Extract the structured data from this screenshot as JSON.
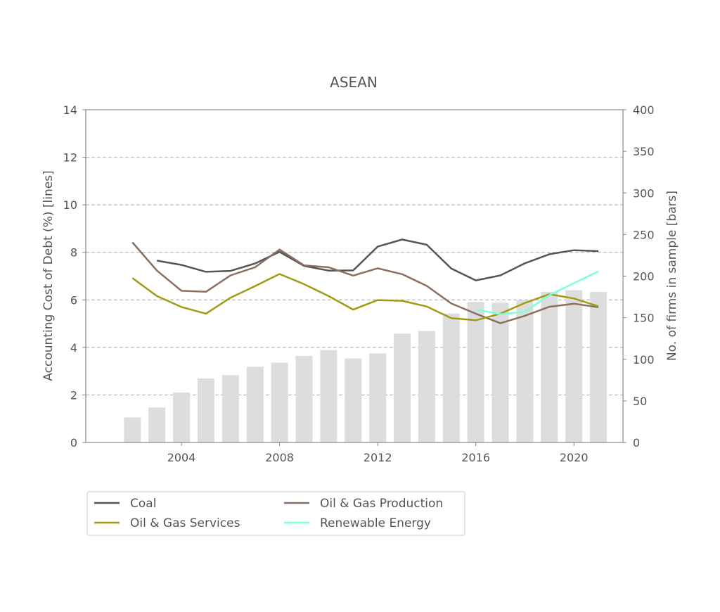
{
  "chart_data": {
    "type": "bar+line",
    "title": "ASEAN",
    "ylabel_left": "Accounting Cost of Debt (%)  [lines]",
    "ylabel_right": "No. of firms in sample [bars]",
    "xlim": [
      2000.1,
      2022.0
    ],
    "ylim_left": [
      0,
      14
    ],
    "ylim_right": [
      0,
      400
    ],
    "x_ticks": [
      2004,
      2008,
      2012,
      2016,
      2020
    ],
    "y_left_ticks": [
      0,
      2,
      4,
      6,
      8,
      10,
      12,
      14
    ],
    "y_right_ticks": [
      0,
      50,
      100,
      150,
      200,
      250,
      300,
      350,
      400
    ],
    "grid": "horizontal dashed",
    "legend_position": "bottom",
    "bar_color": "#dddddd",
    "bars": {
      "x": [
        2002,
        2003,
        2004,
        2005,
        2006,
        2007,
        2008,
        2009,
        2010,
        2011,
        2012,
        2013,
        2014,
        2015,
        2016,
        2017,
        2018,
        2019,
        2020,
        2021
      ],
      "values": [
        30,
        42,
        60,
        77,
        81,
        91,
        96,
        104,
        111,
        101,
        107,
        131,
        134,
        155,
        169,
        168,
        171,
        181,
        183,
        181
      ]
    },
    "series": [
      {
        "name": "Coal",
        "color": "#555555",
        "x": [
          2003,
          2004,
          2005,
          2006,
          2007,
          2008,
          2009,
          2010,
          2011,
          2012,
          2013,
          2014,
          2015,
          2016,
          2017,
          2018,
          2019,
          2020,
          2021
        ],
        "values": [
          7.65,
          7.47,
          7.18,
          7.22,
          7.53,
          8.02,
          7.43,
          7.23,
          7.24,
          8.24,
          8.54,
          8.32,
          7.32,
          6.82,
          7.03,
          7.54,
          7.92,
          8.09,
          8.05
        ]
      },
      {
        "name": "Oil & Gas Production",
        "color": "#8c6d62",
        "x": [
          2002,
          2003,
          2004,
          2005,
          2006,
          2007,
          2008,
          2009,
          2010,
          2011,
          2012,
          2013,
          2014,
          2015,
          2016,
          2017,
          2018,
          2019,
          2020,
          2021
        ],
        "values": [
          8.42,
          7.23,
          6.38,
          6.34,
          7.03,
          7.37,
          8.12,
          7.45,
          7.37,
          7.02,
          7.33,
          7.08,
          6.59,
          5.85,
          5.42,
          5.02,
          5.33,
          5.71,
          5.84,
          5.69
        ]
      },
      {
        "name": "Oil & Gas Services",
        "color": "#a09b12",
        "x": [
          2002,
          2003,
          2004,
          2005,
          2006,
          2007,
          2008,
          2009,
          2010,
          2011,
          2012,
          2013,
          2014,
          2015,
          2016,
          2017,
          2018,
          2019,
          2020,
          2021
        ],
        "values": [
          6.92,
          6.16,
          5.7,
          5.42,
          6.09,
          6.58,
          7.09,
          6.66,
          6.16,
          5.59,
          5.99,
          5.96,
          5.72,
          5.23,
          5.14,
          5.42,
          5.87,
          6.24,
          6.06,
          5.73
        ]
      },
      {
        "name": "Renewable Energy",
        "color": "#7fffd4",
        "x": [
          2016,
          2017,
          2018,
          2019,
          2020,
          2021
        ],
        "values": [
          5.6,
          5.4,
          5.5,
          6.2,
          6.7,
          7.2
        ]
      }
    ]
  }
}
